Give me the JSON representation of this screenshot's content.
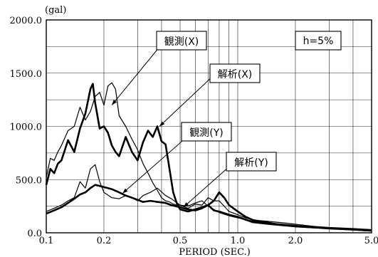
{
  "chart_data": {
    "type": "line",
    "y_unit": "(gal)",
    "xlabel": "PERIOD (SEC.)",
    "x_scale": "log",
    "xlim": [
      0.1,
      5.0
    ],
    "ylim": [
      0,
      2000
    ],
    "x_ticks": [
      0.1,
      0.2,
      0.5,
      1.0,
      2.0,
      5.0
    ],
    "x_tick_labels": [
      "0.1",
      "0.2",
      "0.5",
      "1.0",
      "2.0",
      "5.0"
    ],
    "y_ticks": [
      0,
      500,
      1000,
      1500,
      2000
    ],
    "y_tick_labels": [
      "0.0",
      "500.0",
      "1000.0",
      "1500.0",
      "2000.0"
    ],
    "grid": true,
    "annotation": "h=5%",
    "series": [
      {
        "name": "観測(X)",
        "stroke_width": 2.6,
        "x": [
          0.1,
          0.105,
          0.11,
          0.115,
          0.12,
          0.13,
          0.14,
          0.15,
          0.16,
          0.17,
          0.175,
          0.18,
          0.19,
          0.2,
          0.21,
          0.22,
          0.23,
          0.24,
          0.26,
          0.28,
          0.3,
          0.32,
          0.34,
          0.36,
          0.38,
          0.4,
          0.42,
          0.44,
          0.46,
          0.48,
          0.5,
          0.55,
          0.6,
          0.65,
          0.7,
          0.75,
          0.8,
          0.9,
          1.0,
          1.2,
          1.5,
          2.0,
          2.5,
          3.0,
          4.0,
          5.0
        ],
        "y": [
          450,
          600,
          560,
          650,
          680,
          870,
          760,
          980,
          1120,
          1350,
          1400,
          1220,
          980,
          1000,
          940,
          820,
          760,
          720,
          900,
          760,
          680,
          850,
          960,
          900,
          1000,
          860,
          830,
          600,
          380,
          280,
          220,
          200,
          220,
          240,
          260,
          210,
          200,
          170,
          150,
          100,
          80,
          60,
          50,
          45,
          30,
          20
        ]
      },
      {
        "name": "解析(X)",
        "stroke_width": 1.2,
        "x": [
          0.1,
          0.105,
          0.11,
          0.115,
          0.12,
          0.13,
          0.14,
          0.15,
          0.16,
          0.17,
          0.18,
          0.19,
          0.2,
          0.21,
          0.22,
          0.23,
          0.24,
          0.26,
          0.28,
          0.3,
          0.32,
          0.34,
          0.36,
          0.38,
          0.4,
          0.42,
          0.44,
          0.46,
          0.48,
          0.5,
          0.55,
          0.6,
          0.65,
          0.7,
          0.75,
          0.8,
          0.9,
          1.0,
          1.2,
          1.5,
          2.0,
          2.5,
          3.0,
          4.0,
          5.0
        ],
        "y": [
          520,
          700,
          680,
          760,
          820,
          960,
          1000,
          1180,
          1060,
          1140,
          1280,
          1320,
          1200,
          1380,
          1410,
          1350,
          1100,
          1000,
          880,
          780,
          650,
          560,
          470,
          400,
          330,
          300,
          290,
          270,
          260,
          260,
          250,
          280,
          300,
          250,
          220,
          190,
          160,
          140,
          110,
          90,
          70,
          55,
          45,
          35,
          25
        ]
      },
      {
        "name": "観測(Y)",
        "stroke_width": 1.2,
        "x": [
          0.1,
          0.11,
          0.12,
          0.13,
          0.14,
          0.15,
          0.16,
          0.17,
          0.18,
          0.19,
          0.2,
          0.22,
          0.24,
          0.26,
          0.28,
          0.3,
          0.32,
          0.35,
          0.38,
          0.42,
          0.45,
          0.5,
          0.55,
          0.6,
          0.65,
          0.7,
          0.75,
          0.8,
          0.85,
          0.9,
          1.0,
          1.1,
          1.2,
          1.4,
          1.6,
          1.8,
          2.0,
          2.5,
          3.0,
          4.0,
          5.0
        ],
        "y": [
          200,
          230,
          260,
          300,
          330,
          480,
          420,
          600,
          640,
          480,
          380,
          330,
          320,
          350,
          330,
          300,
          350,
          380,
          420,
          350,
          320,
          260,
          230,
          270,
          260,
          330,
          300,
          300,
          250,
          200,
          170,
          140,
          120,
          110,
          100,
          90,
          80,
          60,
          50,
          40,
          30
        ]
      },
      {
        "name": "解析(Y)",
        "stroke_width": 2.6,
        "x": [
          0.1,
          0.11,
          0.12,
          0.13,
          0.14,
          0.15,
          0.16,
          0.17,
          0.18,
          0.19,
          0.2,
          0.21,
          0.22,
          0.24,
          0.26,
          0.28,
          0.3,
          0.32,
          0.35,
          0.38,
          0.42,
          0.45,
          0.5,
          0.55,
          0.6,
          0.65,
          0.7,
          0.75,
          0.8,
          0.85,
          0.9,
          1.0,
          1.1,
          1.2,
          1.4,
          1.6,
          1.8,
          2.0,
          2.5,
          3.0,
          4.0,
          5.0
        ],
        "y": [
          180,
          210,
          240,
          280,
          320,
          360,
          380,
          420,
          450,
          440,
          430,
          420,
          410,
          380,
          350,
          330,
          310,
          290,
          300,
          290,
          280,
          260,
          240,
          220,
          210,
          230,
          260,
          300,
          380,
          330,
          260,
          200,
          150,
          120,
          100,
          80,
          70,
          60,
          50,
          40,
          30,
          20
        ]
      }
    ],
    "callouts": [
      {
        "series": "観測(X)",
        "label": "観測(X)"
      },
      {
        "series": "解析(X)",
        "label": "解析(X)"
      },
      {
        "series": "観測(Y)",
        "label": "観測(Y)"
      },
      {
        "series": "解析(Y)",
        "label": "解析(Y)"
      }
    ]
  }
}
